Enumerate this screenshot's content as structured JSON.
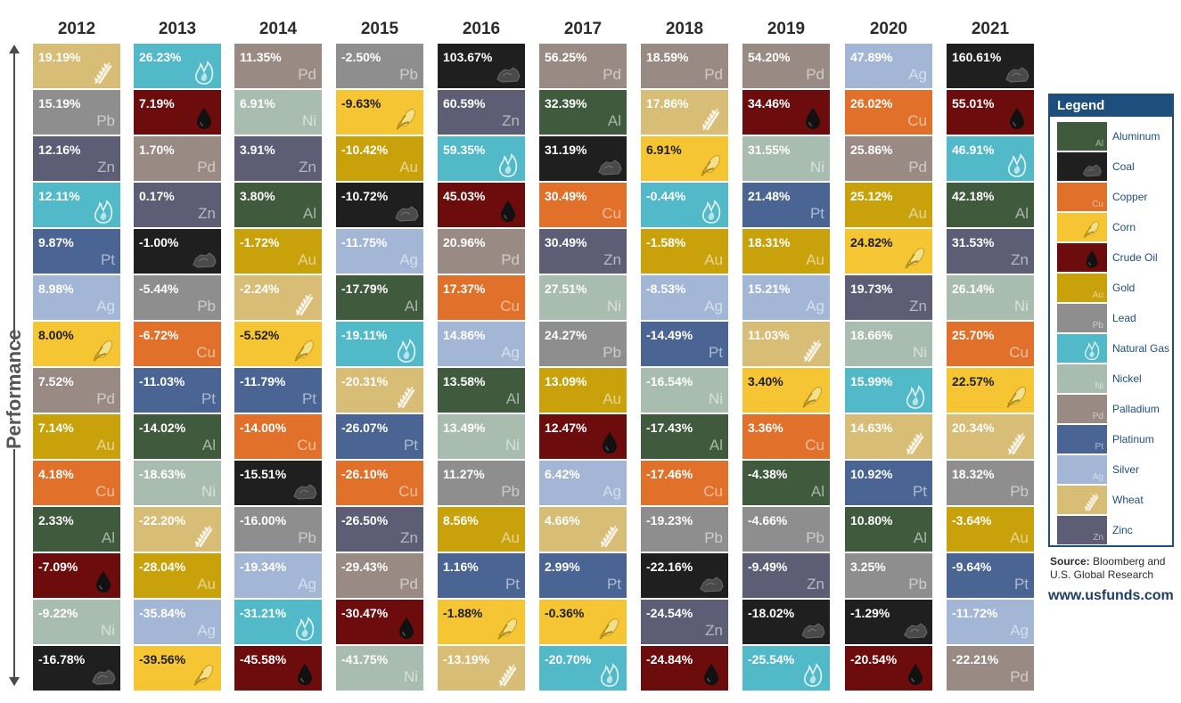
{
  "axis_label": "Performance",
  "legend_title": "Legend",
  "source_label": "Source:",
  "source_text": "Bloomberg and U.S. Global Research",
  "website": "www.usfunds.com",
  "commodities": {
    "Aluminum": {
      "symbol": "Al",
      "color": "#3f5a3d",
      "icon": "none"
    },
    "Coal": {
      "symbol": "",
      "color": "#1f1f1f",
      "icon": "coal-icon"
    },
    "Copper": {
      "symbol": "Cu",
      "color": "#e0702a",
      "icon": "none"
    },
    "Corn": {
      "symbol": "",
      "color": "#f5c533",
      "icon": "corn-icon"
    },
    "Crude Oil": {
      "symbol": "",
      "color": "#6d0c0c",
      "icon": "oil-drop-icon"
    },
    "Gold": {
      "symbol": "Au",
      "color": "#c9a10a",
      "icon": "none"
    },
    "Lead": {
      "symbol": "Pb",
      "color": "#8e8e8e",
      "icon": "none"
    },
    "Natural Gas": {
      "symbol": "",
      "color": "#52b9c9",
      "icon": "flame-icon"
    },
    "Nickel": {
      "symbol": "Ni",
      "color": "#a9bcb0",
      "icon": "none"
    },
    "Palladium": {
      "symbol": "Pd",
      "color": "#9a8a84",
      "icon": "none"
    },
    "Platinum": {
      "symbol": "Pt",
      "color": "#4a6594",
      "icon": "none"
    },
    "Silver": {
      "symbol": "Ag",
      "color": "#a3b6d6",
      "icon": "none"
    },
    "Wheat": {
      "symbol": "",
      "color": "#d8bd76",
      "icon": "wheat-icon"
    },
    "Zinc": {
      "symbol": "Zn",
      "color": "#5d5e75",
      "icon": "none"
    }
  },
  "legend_order": [
    "Aluminum",
    "Coal",
    "Copper",
    "Corn",
    "Crude Oil",
    "Gold",
    "Lead",
    "Natural Gas",
    "Nickel",
    "Palladium",
    "Platinum",
    "Silver",
    "Wheat",
    "Zinc"
  ],
  "legend_symbols": {
    "Aluminum": "Al",
    "Copper": "Cu",
    "Gold": "Au",
    "Lead": "Pb",
    "Nickel": "Ni",
    "Palladium": "Pd",
    "Platinum": "Pt",
    "Silver": "Ag",
    "Zinc": "Zn"
  },
  "chart_data": {
    "type": "table",
    "years": [
      "2012",
      "2013",
      "2014",
      "2015",
      "2016",
      "2017",
      "2018",
      "2019",
      "2020",
      "2021"
    ],
    "columns": [
      {
        "year": "2012",
        "ranking": [
          {
            "commodity": "Wheat",
            "value": "19.19%"
          },
          {
            "commodity": "Lead",
            "value": "15.19%"
          },
          {
            "commodity": "Zinc",
            "value": "12.16%"
          },
          {
            "commodity": "Natural Gas",
            "value": "12.11%"
          },
          {
            "commodity": "Platinum",
            "value": "9.87%"
          },
          {
            "commodity": "Silver",
            "value": "8.98%"
          },
          {
            "commodity": "Corn",
            "value": "8.00%"
          },
          {
            "commodity": "Palladium",
            "value": "7.52%"
          },
          {
            "commodity": "Gold",
            "value": "7.14%"
          },
          {
            "commodity": "Copper",
            "value": "4.18%"
          },
          {
            "commodity": "Aluminum",
            "value": "2.33%"
          },
          {
            "commodity": "Crude Oil",
            "value": "-7.09%"
          },
          {
            "commodity": "Nickel",
            "value": "-9.22%"
          },
          {
            "commodity": "Coal",
            "value": "-16.78%"
          }
        ]
      },
      {
        "year": "2013",
        "ranking": [
          {
            "commodity": "Natural Gas",
            "value": "26.23%"
          },
          {
            "commodity": "Crude Oil",
            "value": "7.19%"
          },
          {
            "commodity": "Palladium",
            "value": "1.70%"
          },
          {
            "commodity": "Zinc",
            "value": "0.17%"
          },
          {
            "commodity": "Coal",
            "value": "-1.00%"
          },
          {
            "commodity": "Lead",
            "value": "-5.44%"
          },
          {
            "commodity": "Copper",
            "value": "-6.72%"
          },
          {
            "commodity": "Platinum",
            "value": "-11.03%"
          },
          {
            "commodity": "Aluminum",
            "value": "-14.02%"
          },
          {
            "commodity": "Nickel",
            "value": "-18.63%"
          },
          {
            "commodity": "Wheat",
            "value": "-22.20%"
          },
          {
            "commodity": "Gold",
            "value": "-28.04%"
          },
          {
            "commodity": "Silver",
            "value": "-35.84%"
          },
          {
            "commodity": "Corn",
            "value": "-39.56%"
          }
        ]
      },
      {
        "year": "2014",
        "ranking": [
          {
            "commodity": "Palladium",
            "value": "11.35%"
          },
          {
            "commodity": "Nickel",
            "value": "6.91%"
          },
          {
            "commodity": "Zinc",
            "value": "3.91%"
          },
          {
            "commodity": "Aluminum",
            "value": "3.80%"
          },
          {
            "commodity": "Gold",
            "value": "-1.72%"
          },
          {
            "commodity": "Wheat",
            "value": "-2.24%"
          },
          {
            "commodity": "Corn",
            "value": "-5.52%"
          },
          {
            "commodity": "Platinum",
            "value": "-11.79%"
          },
          {
            "commodity": "Copper",
            "value": "-14.00%"
          },
          {
            "commodity": "Coal",
            "value": "-15.51%"
          },
          {
            "commodity": "Lead",
            "value": "-16.00%"
          },
          {
            "commodity": "Silver",
            "value": "-19.34%"
          },
          {
            "commodity": "Natural Gas",
            "value": "-31.21%"
          },
          {
            "commodity": "Crude Oil",
            "value": "-45.58%"
          }
        ]
      },
      {
        "year": "2015",
        "ranking": [
          {
            "commodity": "Lead",
            "value": "-2.50%"
          },
          {
            "commodity": "Corn",
            "value": "-9.63%"
          },
          {
            "commodity": "Gold",
            "value": "-10.42%"
          },
          {
            "commodity": "Coal",
            "value": "-10.72%"
          },
          {
            "commodity": "Silver",
            "value": "-11.75%"
          },
          {
            "commodity": "Aluminum",
            "value": "-17.79%"
          },
          {
            "commodity": "Natural Gas",
            "value": "-19.11%"
          },
          {
            "commodity": "Wheat",
            "value": "-20.31%"
          },
          {
            "commodity": "Platinum",
            "value": "-26.07%"
          },
          {
            "commodity": "Copper",
            "value": "-26.10%"
          },
          {
            "commodity": "Zinc",
            "value": "-26.50%"
          },
          {
            "commodity": "Palladium",
            "value": "-29.43%"
          },
          {
            "commodity": "Crude Oil",
            "value": "-30.47%"
          },
          {
            "commodity": "Nickel",
            "value": "-41.75%"
          }
        ]
      },
      {
        "year": "2016",
        "ranking": [
          {
            "commodity": "Coal",
            "value": "103.67%"
          },
          {
            "commodity": "Zinc",
            "value": "60.59%"
          },
          {
            "commodity": "Natural Gas",
            "value": "59.35%"
          },
          {
            "commodity": "Crude Oil",
            "value": "45.03%"
          },
          {
            "commodity": "Palladium",
            "value": "20.96%"
          },
          {
            "commodity": "Copper",
            "value": "17.37%"
          },
          {
            "commodity": "Silver",
            "value": "14.86%"
          },
          {
            "commodity": "Aluminum",
            "value": "13.58%"
          },
          {
            "commodity": "Nickel",
            "value": "13.49%"
          },
          {
            "commodity": "Lead",
            "value": "11.27%"
          },
          {
            "commodity": "Gold",
            "value": "8.56%"
          },
          {
            "commodity": "Platinum",
            "value": "1.16%"
          },
          {
            "commodity": "Corn",
            "value": "-1.88%"
          },
          {
            "commodity": "Wheat",
            "value": "-13.19%"
          }
        ]
      },
      {
        "year": "2017",
        "ranking": [
          {
            "commodity": "Palladium",
            "value": "56.25%"
          },
          {
            "commodity": "Aluminum",
            "value": "32.39%"
          },
          {
            "commodity": "Coal",
            "value": "31.19%"
          },
          {
            "commodity": "Copper",
            "value": "30.49%"
          },
          {
            "commodity": "Zinc",
            "value": "30.49%"
          },
          {
            "commodity": "Nickel",
            "value": "27.51%"
          },
          {
            "commodity": "Lead",
            "value": "24.27%"
          },
          {
            "commodity": "Gold",
            "value": "13.09%"
          },
          {
            "commodity": "Crude Oil",
            "value": "12.47%"
          },
          {
            "commodity": "Silver",
            "value": "6.42%"
          },
          {
            "commodity": "Wheat",
            "value": "4.66%"
          },
          {
            "commodity": "Platinum",
            "value": "2.99%"
          },
          {
            "commodity": "Corn",
            "value": "-0.36%"
          },
          {
            "commodity": "Natural Gas",
            "value": "-20.70%"
          }
        ]
      },
      {
        "year": "2018",
        "ranking": [
          {
            "commodity": "Palladium",
            "value": "18.59%"
          },
          {
            "commodity": "Wheat",
            "value": "17.86%"
          },
          {
            "commodity": "Corn",
            "value": "6.91%"
          },
          {
            "commodity": "Natural Gas",
            "value": "-0.44%"
          },
          {
            "commodity": "Gold",
            "value": "-1.58%"
          },
          {
            "commodity": "Silver",
            "value": "-8.53%"
          },
          {
            "commodity": "Platinum",
            "value": "-14.49%"
          },
          {
            "commodity": "Nickel",
            "value": "-16.54%"
          },
          {
            "commodity": "Aluminum",
            "value": "-17.43%"
          },
          {
            "commodity": "Copper",
            "value": "-17.46%"
          },
          {
            "commodity": "Lead",
            "value": "-19.23%"
          },
          {
            "commodity": "Coal",
            "value": "-22.16%"
          },
          {
            "commodity": "Zinc",
            "value": "-24.54%"
          },
          {
            "commodity": "Crude Oil",
            "value": "-24.84%"
          }
        ]
      },
      {
        "year": "2019",
        "ranking": [
          {
            "commodity": "Palladium",
            "value": "54.20%"
          },
          {
            "commodity": "Crude Oil",
            "value": "34.46%"
          },
          {
            "commodity": "Nickel",
            "value": "31.55%"
          },
          {
            "commodity": "Platinum",
            "value": "21.48%"
          },
          {
            "commodity": "Gold",
            "value": "18.31%"
          },
          {
            "commodity": "Silver",
            "value": "15.21%"
          },
          {
            "commodity": "Wheat",
            "value": "11.03%"
          },
          {
            "commodity": "Corn",
            "value": "3.40%"
          },
          {
            "commodity": "Copper",
            "value": "3.36%"
          },
          {
            "commodity": "Aluminum",
            "value": "-4.38%"
          },
          {
            "commodity": "Lead",
            "value": "-4.66%"
          },
          {
            "commodity": "Zinc",
            "value": "-9.49%"
          },
          {
            "commodity": "Coal",
            "value": "-18.02%"
          },
          {
            "commodity": "Natural Gas",
            "value": "-25.54%"
          }
        ]
      },
      {
        "year": "2020",
        "ranking": [
          {
            "commodity": "Silver",
            "value": "47.89%"
          },
          {
            "commodity": "Copper",
            "value": "26.02%"
          },
          {
            "commodity": "Palladium",
            "value": "25.86%"
          },
          {
            "commodity": "Gold",
            "value": "25.12%"
          },
          {
            "commodity": "Corn",
            "value": "24.82%"
          },
          {
            "commodity": "Zinc",
            "value": "19.73%"
          },
          {
            "commodity": "Nickel",
            "value": "18.66%"
          },
          {
            "commodity": "Natural Gas",
            "value": "15.99%"
          },
          {
            "commodity": "Wheat",
            "value": "14.63%"
          },
          {
            "commodity": "Platinum",
            "value": "10.92%"
          },
          {
            "commodity": "Aluminum",
            "value": "10.80%"
          },
          {
            "commodity": "Lead",
            "value": "3.25%"
          },
          {
            "commodity": "Coal",
            "value": "-1.29%"
          },
          {
            "commodity": "Crude Oil",
            "value": "-20.54%"
          }
        ]
      },
      {
        "year": "2021",
        "ranking": [
          {
            "commodity": "Coal",
            "value": "160.61%"
          },
          {
            "commodity": "Crude Oil",
            "value": "55.01%"
          },
          {
            "commodity": "Natural Gas",
            "value": "46.91%"
          },
          {
            "commodity": "Aluminum",
            "value": "42.18%"
          },
          {
            "commodity": "Zinc",
            "value": "31.53%"
          },
          {
            "commodity": "Nickel",
            "value": "26.14%"
          },
          {
            "commodity": "Copper",
            "value": "25.70%"
          },
          {
            "commodity": "Corn",
            "value": "22.57%"
          },
          {
            "commodity": "Wheat",
            "value": "20.34%"
          },
          {
            "commodity": "Lead",
            "value": "18.32%"
          },
          {
            "commodity": "Gold",
            "value": "-3.64%"
          },
          {
            "commodity": "Platinum",
            "value": "-9.64%"
          },
          {
            "commodity": "Silver",
            "value": "-11.72%"
          },
          {
            "commodity": "Palladium",
            "value": "-22.21%"
          }
        ]
      }
    ]
  }
}
